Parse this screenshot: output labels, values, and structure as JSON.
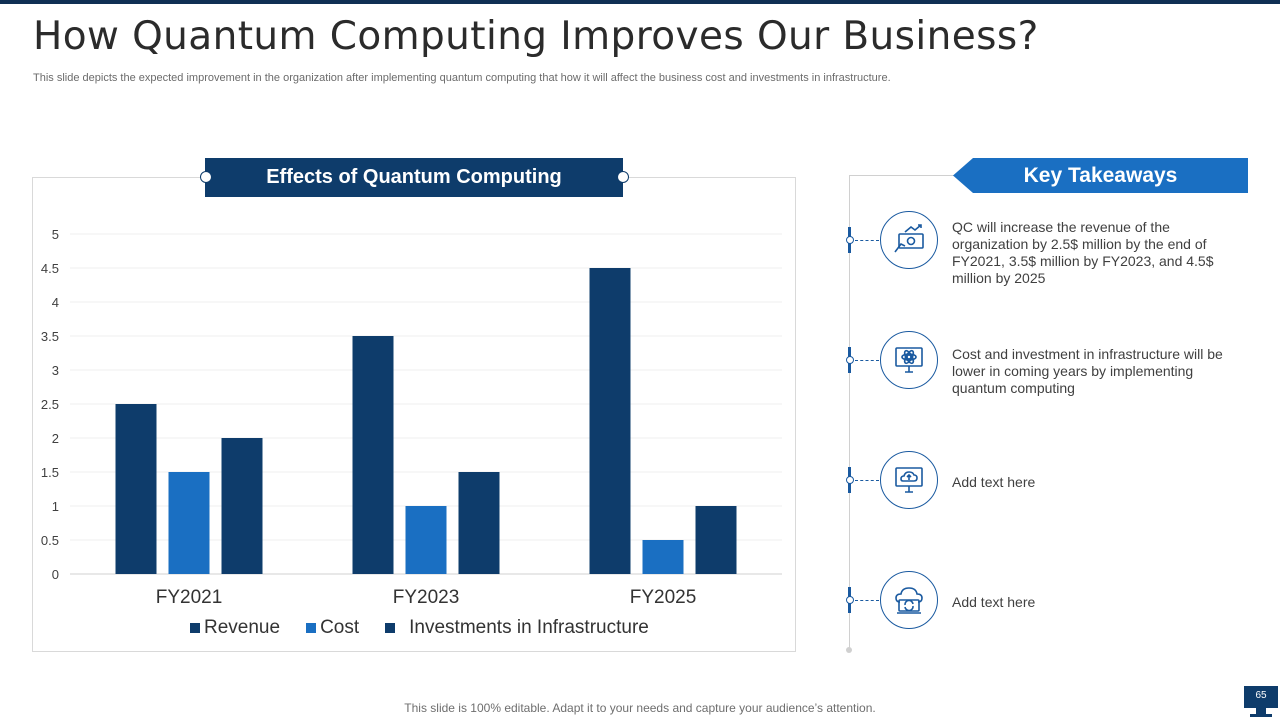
{
  "slide": {
    "title": "How Quantum Computing Improves Our Business?",
    "subtitle": "This slide depicts the expected improvement in the organization after implementing quantum computing that how it will affect the business cost and investments in infrastructure.",
    "footer": "This slide is 100% editable. Adapt it to your needs and capture your audience’s attention.",
    "page_number": "65"
  },
  "chart_data": {
    "type": "bar",
    "title": "Effects of Quantum Computing",
    "categories": [
      "FY2021",
      "FY2023",
      "FY2025"
    ],
    "series": [
      {
        "name": "Revenue",
        "values": [
          2.5,
          3.5,
          4.5
        ],
        "color": "#0e3c6b"
      },
      {
        "name": "Cost",
        "values": [
          1.5,
          1.0,
          0.5
        ],
        "color": "#1a6fc2"
      },
      {
        "name": "Investments in Infrastructure",
        "values": [
          2.0,
          1.5,
          1.0
        ],
        "color": "#0e3c6b"
      }
    ],
    "y_ticks": [
      "0",
      "0.5",
      "1",
      "1.5",
      "2",
      "2.5",
      "3",
      "3.5",
      "4",
      "4.5",
      "5"
    ],
    "ylim": [
      0,
      5
    ],
    "grid": true,
    "legend": "bottom"
  },
  "takeaways": {
    "title": "Key Takeaways",
    "items": [
      {
        "text": "QC will increase the revenue of the organization by 2.5$ million by the end of FY2021, 3.5$ million by FY2023, and 4.5$ million by 2025",
        "icon": "money-growth-icon"
      },
      {
        "text": "Cost and investment in infrastructure will be lower in coming years by implementing quantum computing",
        "icon": "monitor-atom-icon"
      },
      {
        "text": "Add text here",
        "icon": "monitor-cloud-icon"
      },
      {
        "text": "Add text here",
        "icon": "cloud-sync-icon"
      }
    ]
  }
}
